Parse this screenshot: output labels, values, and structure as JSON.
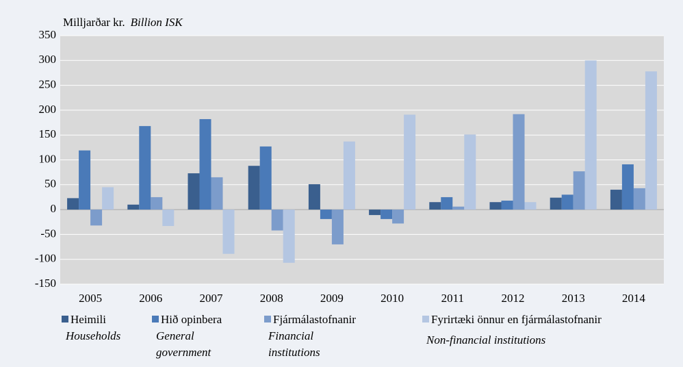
{
  "chart_data": {
    "type": "bar",
    "y_label": "Milljarðar kr.",
    "y_label_en": "Billion ISK",
    "categories": [
      "2005",
      "2006",
      "2007",
      "2008",
      "2009",
      "2010",
      "2011",
      "2012",
      "2013",
      "2014"
    ],
    "series": [
      {
        "name": "Heimili",
        "name_en": "Households",
        "color": "#3a5f8e",
        "values": [
          23,
          10,
          73,
          88,
          51,
          -11,
          15,
          15,
          24,
          40
        ]
      },
      {
        "name": "Hið opinbera",
        "name_en": "General government",
        "color": "#4a7ab8",
        "values": [
          119,
          168,
          182,
          127,
          -19,
          -19,
          25,
          18,
          30,
          91
        ]
      },
      {
        "name": "Fjármálastofnanir",
        "name_en": "Financial institutions",
        "color": "#7c9ccb",
        "values": [
          -32,
          25,
          65,
          -42,
          -70,
          -28,
          6,
          192,
          77,
          43
        ]
      },
      {
        "name": "Fyrirtæki önnur en fjármálastofnanir",
        "name_en": "Non-financial institutions",
        "color": "#b4c6e2",
        "values": [
          45,
          -33,
          -89,
          -107,
          137,
          191,
          151,
          15,
          300,
          278
        ]
      }
    ],
    "ylim": [
      -150,
      350
    ],
    "yticks": [
      -150,
      -100,
      -50,
      0,
      50,
      100,
      150,
      200,
      250,
      300,
      350
    ],
    "grid": true
  }
}
